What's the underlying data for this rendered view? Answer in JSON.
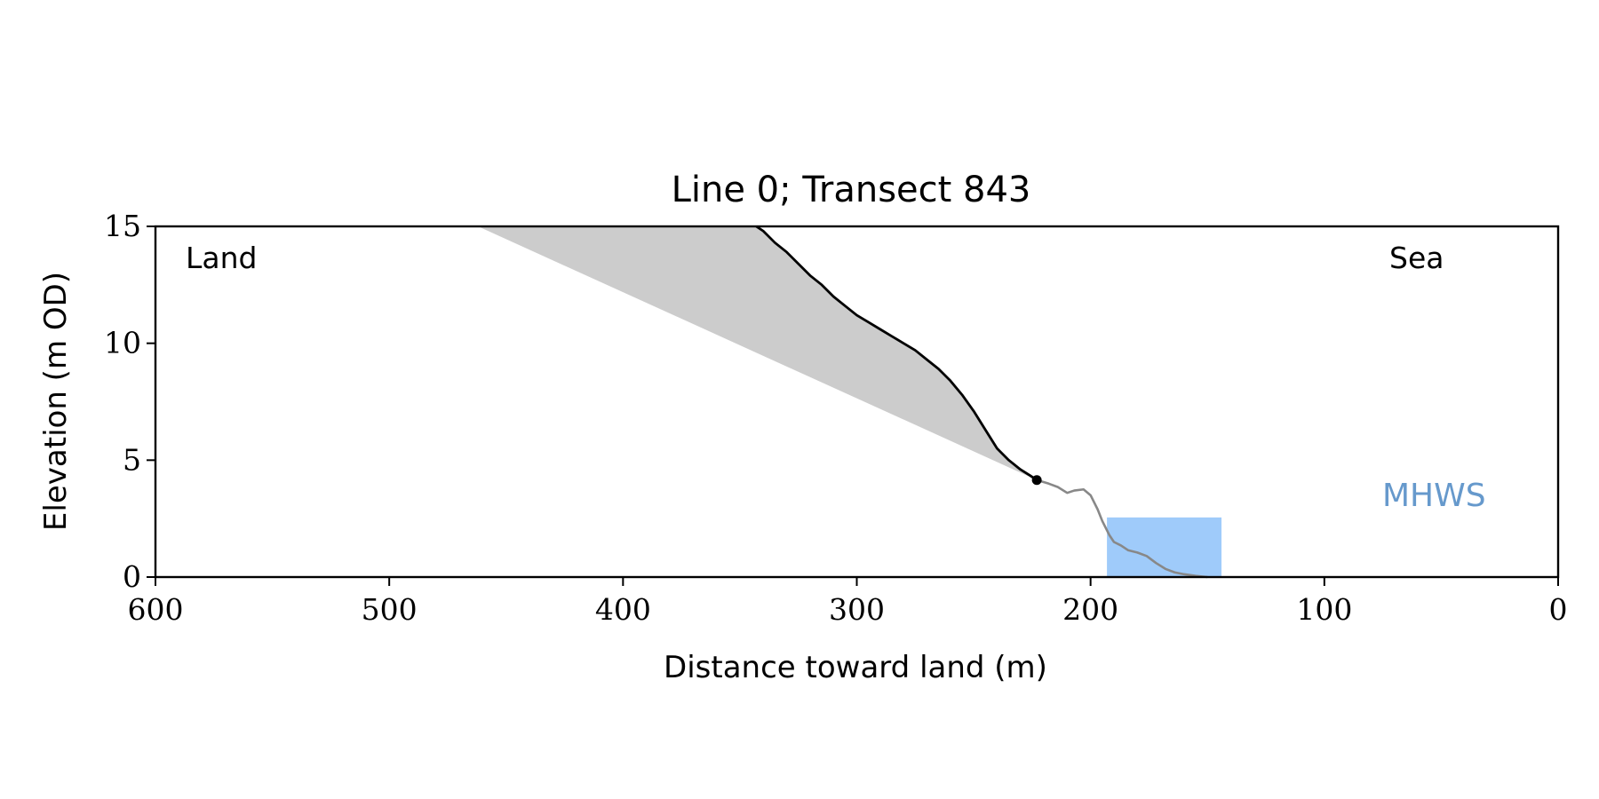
{
  "chart_data": {
    "type": "area",
    "title": "Line 0; Transect 843",
    "xlabel": "Distance toward land (m)",
    "ylabel": "Elevation (m OD)",
    "xlim": [
      600,
      0
    ],
    "ylim": [
      0,
      15
    ],
    "x_ticks": [
      600,
      500,
      400,
      300,
      200,
      100,
      0
    ],
    "y_ticks": [
      0,
      5,
      10,
      15
    ],
    "grid": false,
    "annotations": {
      "land": "Land",
      "sea": "Sea",
      "mhws": "MHWS"
    },
    "colors": {
      "cliff_line": "#000000",
      "lower_profile_line": "#888888",
      "fill_area": "#cccccc",
      "water_box": "#9fcbfa",
      "mhws_text": "#6699cc"
    },
    "cliff_profile": {
      "x": [
        343,
        340,
        335,
        330,
        325,
        320,
        315,
        310,
        305,
        300,
        295,
        290,
        285,
        280,
        275,
        270,
        265,
        260,
        255,
        250,
        245,
        240,
        235,
        230,
        226,
        223
      ],
      "y": [
        15.0,
        14.8,
        14.3,
        13.9,
        13.4,
        12.9,
        12.5,
        12.0,
        11.6,
        11.2,
        10.9,
        10.6,
        10.3,
        10.0,
        9.7,
        9.3,
        8.9,
        8.4,
        7.8,
        7.1,
        6.3,
        5.5,
        5.0,
        4.6,
        4.35,
        4.15
      ]
    },
    "lower_profile": {
      "x": [
        223,
        218,
        214,
        210,
        207,
        203,
        200,
        197,
        195,
        192,
        190,
        187,
        184,
        180,
        176,
        172,
        168,
        164,
        160,
        155,
        150
      ],
      "y": [
        4.15,
        4.0,
        3.85,
        3.6,
        3.7,
        3.75,
        3.5,
        2.9,
        2.4,
        1.8,
        1.5,
        1.35,
        1.15,
        1.05,
        0.9,
        0.6,
        0.35,
        0.2,
        0.12,
        0.05,
        0.0
      ]
    },
    "shaded_region": {
      "base_line": {
        "x": [
          462,
          223
        ],
        "y": [
          15.0,
          4.15
        ]
      }
    },
    "marker": {
      "x": 223,
      "y": 4.15
    },
    "water_box": {
      "x0": 193,
      "x1": 144,
      "y0": 0,
      "y1": 2.55
    }
  }
}
